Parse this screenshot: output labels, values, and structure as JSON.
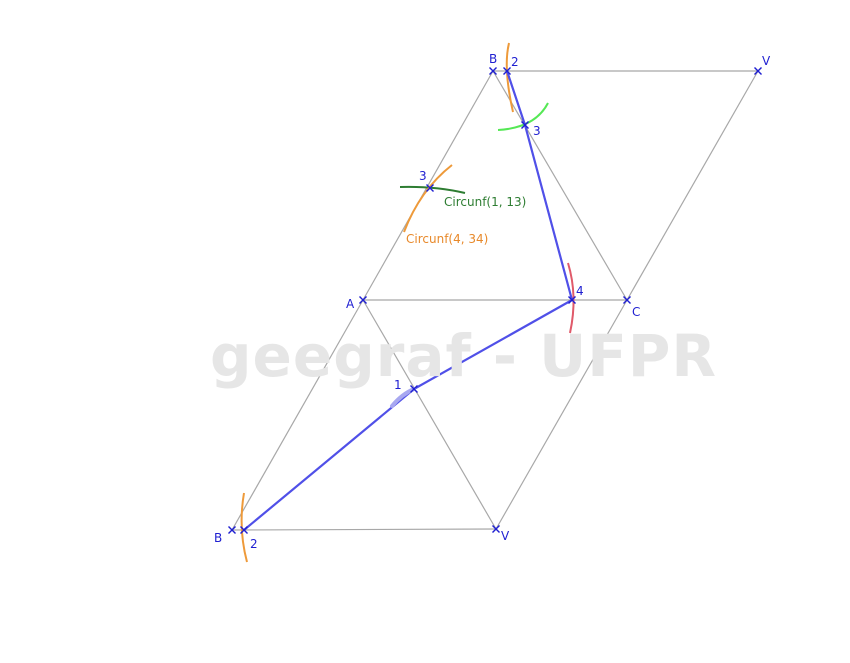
{
  "watermark": "geegraf - UFPR",
  "colors": {
    "edge": "#a8a8a8",
    "point": "#1f1fd1",
    "label": "#1f1fd1",
    "path": "#5050e8",
    "arc_orange": "#ee9a3a",
    "arc_green_dark": "#2e7d32",
    "arc_green_light": "#55e855",
    "arc_red": "#e05a6a",
    "annotation_green": "#2e7d32",
    "annotation_orange": "#e8892a"
  },
  "labels": {
    "B_top": "B",
    "two_top": "2",
    "V_top": "V",
    "three_green": "3",
    "three_orange": "3",
    "A": "A",
    "four": "4",
    "C": "C",
    "one": "1",
    "B_bottom": "B",
    "two_bottom": "2",
    "V_bottom": "V"
  },
  "annotations": {
    "circ_green": "Circunf(1, 13)",
    "circ_orange": "Circunf(4, 34)"
  }
}
